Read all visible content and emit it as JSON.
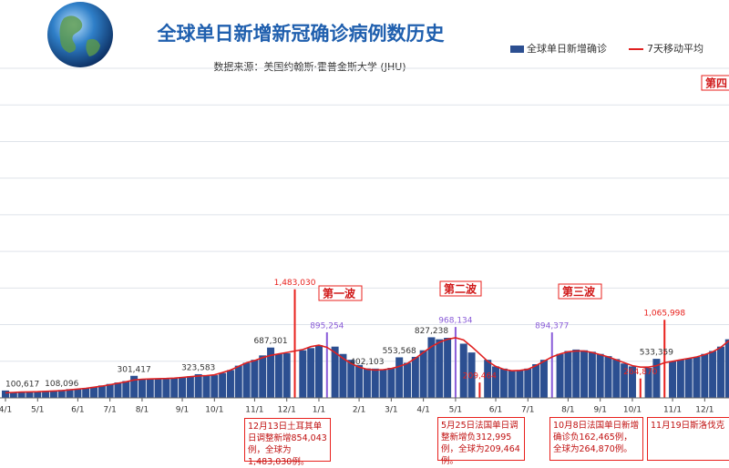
{
  "chart_data": {
    "type": "bar",
    "title": "全球单日新增新冠确诊病例数历史",
    "subtitle": "数据来源：美国约翰斯·霍普金斯大学 (JHU)",
    "categories": [
      "4/1",
      null,
      null,
      null,
      "5/1",
      null,
      null,
      null,
      null,
      "6/1",
      null,
      null,
      null,
      "7/1",
      null,
      null,
      null,
      "8/1",
      null,
      null,
      null,
      null,
      "9/1",
      null,
      null,
      null,
      "10/1",
      null,
      null,
      null,
      null,
      "11/1",
      null,
      null,
      null,
      "12/1",
      null,
      null,
      null,
      "1/1",
      null,
      null,
      null,
      null,
      "2/1",
      null,
      null,
      null,
      "3/1",
      null,
      null,
      null,
      "4/1",
      null,
      null,
      null,
      "5/1",
      null,
      null,
      null,
      null,
      "6/1",
      null,
      null,
      null,
      "7/1",
      null,
      null,
      null,
      null,
      "8/1",
      null,
      null,
      null,
      "9/1",
      null,
      null,
      null,
      "10/1",
      null,
      null,
      null,
      null,
      "11/1",
      null,
      null,
      null,
      "12/1",
      null,
      null,
      null
    ],
    "series": [
      {
        "name": "全球单日新增确诊",
        "type": "bar",
        "color": "#2c4f91",
        "values": [
          100617,
          80000,
          85000,
          82000,
          90000,
          95000,
          100000,
          108096,
          120000,
          125000,
          135000,
          150000,
          170000,
          190000,
          210000,
          230000,
          301417,
          255000,
          260000,
          265000,
          260000,
          270000,
          280000,
          295000,
          323583,
          300000,
          310000,
          340000,
          380000,
          440000,
          480000,
          520000,
          580000,
          687301,
          600000,
          610000,
          1483030,
          650000,
          680000,
          720000,
          895254,
          700000,
          600000,
          520000,
          450000,
          402103,
          400000,
          390000,
          410000,
          553568,
          480000,
          560000,
          650000,
          827238,
          800000,
          820000,
          968134,
          740000,
          620000,
          209464,
          520000,
          430000,
          400000,
          370000,
          380000,
          400000,
          460000,
          520000,
          894377,
          600000,
          640000,
          660000,
          650000,
          630000,
          600000,
          570000,
          530000,
          470000,
          430000,
          264870,
          410000,
          533359,
          1065998,
          500000,
          520000,
          540000,
          560000,
          600000,
          640000,
          700000,
          800000
        ],
        "value_labels": [
          "100,617",
          null,
          null,
          null,
          null,
          null,
          null,
          "108,096",
          null,
          null,
          null,
          null,
          null,
          null,
          null,
          null,
          "301,417",
          null,
          null,
          null,
          null,
          null,
          null,
          null,
          "323,583",
          null,
          null,
          null,
          null,
          null,
          null,
          null,
          null,
          "687,301",
          null,
          null,
          "1,483,030",
          null,
          null,
          null,
          "895,254",
          null,
          null,
          null,
          null,
          "402,103",
          null,
          null,
          null,
          "553,568",
          null,
          null,
          null,
          "827,238",
          null,
          null,
          "968,134",
          null,
          null,
          "209,464",
          null,
          null,
          null,
          null,
          null,
          null,
          null,
          null,
          "894,377",
          null,
          null,
          null,
          null,
          null,
          null,
          null,
          null,
          null,
          null,
          "264,870",
          null,
          "533,359",
          "1,065,998",
          null,
          null,
          null,
          null,
          null,
          null,
          null,
          null
        ],
        "highlight_colors": [
          null,
          null,
          null,
          null,
          null,
          null,
          null,
          null,
          null,
          null,
          null,
          null,
          null,
          null,
          null,
          null,
          null,
          null,
          null,
          null,
          null,
          null,
          null,
          null,
          null,
          null,
          null,
          null,
          null,
          null,
          null,
          null,
          null,
          null,
          null,
          null,
          "#e8201c",
          null,
          null,
          null,
          "#8a5cd8",
          null,
          null,
          null,
          null,
          null,
          null,
          null,
          null,
          null,
          null,
          null,
          null,
          null,
          null,
          null,
          "#8a5cd8",
          null,
          null,
          "#e8201c",
          null,
          null,
          null,
          null,
          null,
          null,
          null,
          null,
          "#8a5cd8",
          null,
          null,
          null,
          null,
          null,
          null,
          null,
          null,
          null,
          null,
          "#e8201c",
          null,
          null,
          "#e8201c",
          null,
          null,
          null,
          null,
          null,
          null,
          null,
          null
        ]
      },
      {
        "name": "7天移动平均",
        "type": "line",
        "color": "#e02020",
        "values": [
          70000,
          75000,
          80000,
          82000,
          85000,
          90000,
          95000,
          100000,
          110000,
          120000,
          130000,
          145000,
          160000,
          180000,
          200000,
          220000,
          245000,
          255000,
          258000,
          262000,
          265000,
          270000,
          280000,
          290000,
          300000,
          305000,
          315000,
          345000,
          380000,
          430000,
          480000,
          510000,
          550000,
          580000,
          600000,
          620000,
          640000,
          660000,
          700000,
          720000,
          690000,
          620000,
          540000,
          470000,
          420000,
          390000,
          380000,
          385000,
          400000,
          430000,
          470000,
          540000,
          620000,
          700000,
          760000,
          800000,
          820000,
          790000,
          700000,
          600000,
          500000,
          430000,
          390000,
          370000,
          375000,
          390000,
          440000,
          500000,
          560000,
          600000,
          630000,
          640000,
          640000,
          620000,
          590000,
          560000,
          520000,
          480000,
          440000,
          420000,
          420000,
          440000,
          480000,
          500000,
          520000,
          540000,
          560000,
          590000,
          630000,
          690000,
          780000
        ]
      }
    ],
    "ylim": [
      0,
      4500000
    ],
    "yticks": [
      0,
      500000,
      1000000,
      1500000,
      2000000,
      2500000,
      3000000,
      3500000,
      4000000,
      4500000
    ],
    "grid": true,
    "wave_labels": [
      "第一波",
      "第二波",
      "第三波",
      "第四"
    ],
    "notes": [
      "12月13日土耳其单日调整新增854,043例，全球为1,483,030例。",
      "5月25日法国单日调整新增负312,995例，全球为209,464例。",
      "10月8日法国单日新增确诊负162,465例，全球为264,870例。",
      "11月19日斯洛伐克"
    ]
  }
}
